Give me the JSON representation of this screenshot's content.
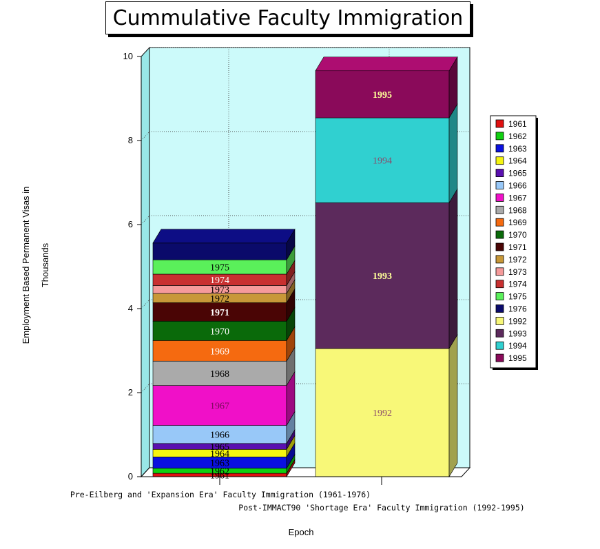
{
  "chart_data": {
    "type": "bar",
    "stacked": true,
    "three_d": true,
    "title": "Cummulative Faculty Immigration",
    "xlabel": "Epoch",
    "ylabel": "Employment Based Permanent Visas in Thousands",
    "ylabel_lines": [
      "Employment Based Permanent Visas in",
      "Thousands"
    ],
    "ylim": [
      0,
      10
    ],
    "yticks": [
      0,
      2,
      4,
      6,
      8,
      10
    ],
    "grid": true,
    "legend_position": "right",
    "categories": [
      "Pre-Eilberg and 'Expansion Era' Faculty Immigration (1961-1976)",
      "Post-IMMACT90 'Shortage Era' Faculty Immigration (1992-1995)"
    ],
    "series": [
      {
        "name": "1961",
        "color": "#e01010",
        "values": [
          0.08,
          0
        ]
      },
      {
        "name": "1962",
        "color": "#10d010",
        "values": [
          0.12,
          0
        ]
      },
      {
        "name": "1963",
        "color": "#0a10e0",
        "values": [
          0.27,
          0
        ]
      },
      {
        "name": "1964",
        "color": "#f5f510",
        "values": [
          0.18,
          0
        ]
      },
      {
        "name": "1965",
        "color": "#5a10b0",
        "values": [
          0.14,
          0
        ]
      },
      {
        "name": "1966",
        "color": "#98c8f8",
        "values": [
          0.43,
          0
        ]
      },
      {
        "name": "1967",
        "color": "#f010c8",
        "values": [
          0.95,
          0
        ]
      },
      {
        "name": "1968",
        "color": "#aaaaaa",
        "values": [
          0.58,
          0
        ]
      },
      {
        "name": "1969",
        "color": "#f56a10",
        "values": [
          0.49,
          0
        ]
      },
      {
        "name": "1970",
        "color": "#0a6a0a",
        "values": [
          0.46,
          0
        ]
      },
      {
        "name": "1971",
        "color": "#4a0505",
        "values": [
          0.44,
          0
        ]
      },
      {
        "name": "1972",
        "color": "#c89838",
        "values": [
          0.22,
          0
        ]
      },
      {
        "name": "1973",
        "color": "#f59a9a",
        "values": [
          0.19,
          0
        ]
      },
      {
        "name": "1974",
        "color": "#c83030",
        "values": [
          0.27,
          0
        ]
      },
      {
        "name": "1975",
        "color": "#5af05a",
        "values": [
          0.34,
          0
        ]
      },
      {
        "name": "1976",
        "color": "#0a0a6a",
        "values": [
          0.4,
          0
        ]
      },
      {
        "name": "1992",
        "color": "#f8f878",
        "values": [
          0,
          3.05
        ]
      },
      {
        "name": "1993",
        "color": "#5c2a5c",
        "values": [
          0,
          3.47
        ]
      },
      {
        "name": "1994",
        "color": "#30d0d0",
        "values": [
          0,
          2.02
        ]
      },
      {
        "name": "1995",
        "color": "#8a0a5a",
        "values": [
          0,
          1.12
        ]
      }
    ],
    "bar_labels": [
      [
        "1961",
        "1962",
        "1963",
        "1964",
        "1965",
        "1966",
        "1967",
        "1968",
        "1969",
        "1970",
        "1971",
        "1972",
        "1973",
        "1974",
        "1975",
        ""
      ],
      [
        "1992",
        "1993",
        "1994",
        "1995"
      ]
    ],
    "label_colors": {
      "1961": "#000000",
      "1962": "#000000",
      "1963": "#000000",
      "1964": "#000000",
      "1965": "#000000",
      "1966": "#000000",
      "1967": "#7a0a5a",
      "1968": "#000000",
      "1969": "#ffffff",
      "1970": "#ffffff",
      "1971": "#ffffff",
      "1972": "#000000",
      "1973": "#000000",
      "1974": "#ffffff",
      "1975": "#000000",
      "1992": "#8a4a6a",
      "1993": "#ffff99",
      "1994": "#8a4a6a",
      "1995": "#ffff99"
    },
    "panel_color": "#ccfafa",
    "wall_color": "#99e8e8"
  }
}
